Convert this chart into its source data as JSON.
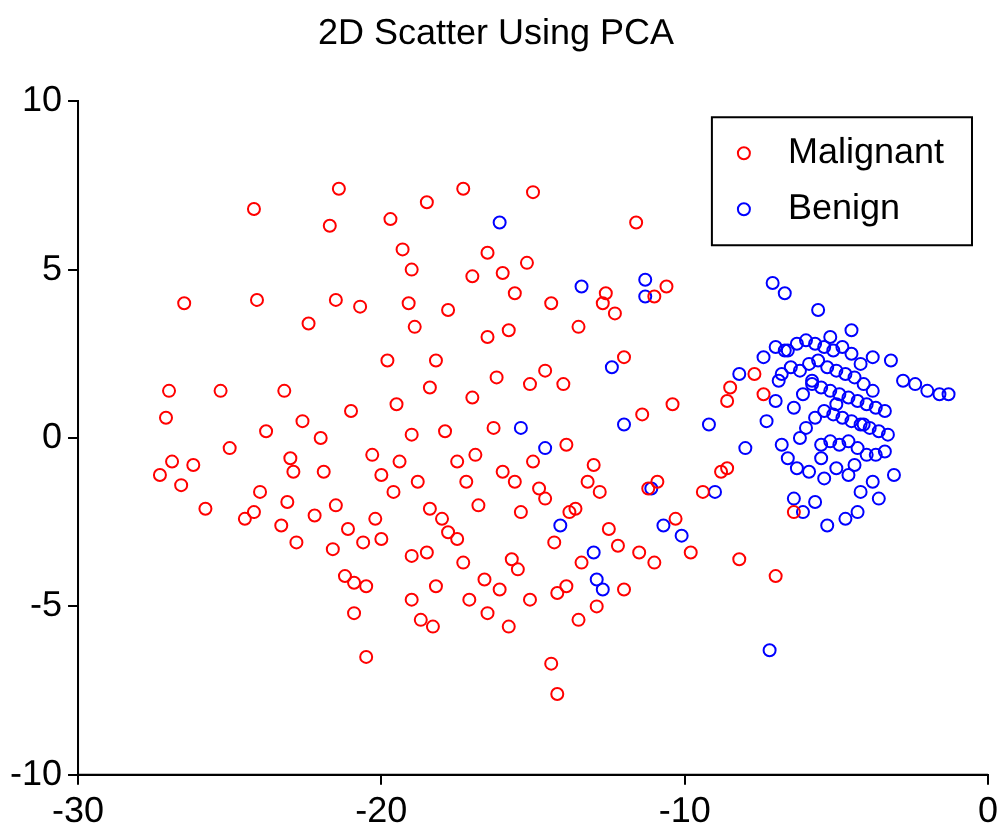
{
  "chart_data": {
    "type": "scatter",
    "title": "2D Scatter Using PCA",
    "xlim": [
      -30,
      0
    ],
    "ylim": [
      -10,
      10
    ],
    "xticks": [
      -30,
      -20,
      -10,
      0
    ],
    "yticks": [
      -10,
      -5,
      0,
      5,
      10
    ],
    "legend": "top right",
    "marker": "circle",
    "grid": false,
    "series": [
      {
        "name": "Malignant",
        "color": "#ff0000",
        "x": [
          -26.5,
          -27.0,
          -27.1,
          -26.9,
          -27.3,
          -26.6,
          -26.2,
          -25.8,
          -25.3,
          -24.2,
          -24.1,
          -24.5,
          -24.2,
          -24.0,
          -23.3,
          -23.1,
          -23.0,
          -22.8,
          -22.6,
          -22.9,
          -23.2,
          -21.4,
          -21.5,
          -22.0,
          -21.9,
          -21.5,
          -22.2,
          -21.6,
          -21.2,
          -20.9,
          -20.5,
          -21.0,
          -20.3,
          -20.0,
          -19.6,
          -19.8,
          -19.5,
          -19.3,
          -19.0,
          -19.1,
          -18.9,
          -19.7,
          -18.5,
          -18.8,
          -18.5,
          -18.2,
          -19.0,
          -18.7,
          -18.3,
          -20.5,
          -20.9,
          -17.5,
          -17.2,
          -17.0,
          -16.8,
          -16.5,
          -16.0,
          -15.8,
          -16.5,
          -17.0,
          -17.3,
          -15.0,
          -15.2,
          -14.8,
          -15.4,
          -15.7,
          -15.5,
          -16.1,
          -16.5,
          -17.1,
          -17.3,
          -17.8,
          -18.0,
          -18.4,
          -17.9,
          -18.4,
          -19.0,
          -19.4,
          -20.2,
          -20.6,
          -21.1,
          -20.0,
          -19.0,
          -17.5,
          -16.9,
          -16.3,
          -16.0,
          -15.6,
          -15.0,
          -14.6,
          -14.3,
          -13.8,
          -13.6,
          -13.2,
          -13.0,
          -12.8,
          -12.5,
          -13.4,
          -14.2,
          -13.5,
          -14.4,
          -14.2,
          -15.8,
          -16.6,
          -15.1,
          -13.9,
          -12.2,
          -12.0,
          -11.5,
          -11.0,
          -11.2,
          -11.4,
          -12.0,
          -12.3,
          -12.7,
          -13.5,
          -14.0,
          -14.6,
          -15.1,
          -14.4,
          -15.6,
          -16.2,
          -17.8,
          -18.2,
          -20.7,
          -21.7,
          -22.4,
          -23.8,
          -25.0,
          -11.0,
          -10.6,
          -10.9,
          -10.4,
          -10.3,
          -9.8,
          -9.4,
          -8.5,
          -8.2,
          -8.6,
          -8.8,
          -7.7,
          -7.4,
          -8.6,
          -12.9,
          -11.6,
          -12.6,
          -13.9,
          -6.4,
          -7.0
        ],
        "values": [
          4.0,
          1.4,
          0.6,
          -0.7,
          -1.1,
          -1.4,
          -0.8,
          -2.1,
          1.4,
          6.8,
          4.1,
          -2.4,
          -2.2,
          -1.6,
          -2.6,
          -1.9,
          -0.6,
          -3.1,
          0.5,
          -1.0,
          1.4,
          7.4,
          4.1,
          0.0,
          -1.0,
          -2.0,
          -2.3,
          -3.3,
          -4.1,
          -4.3,
          -4.4,
          0.8,
          -0.5,
          -1.1,
          -1.6,
          2.3,
          1.0,
          5.6,
          5.0,
          4.0,
          3.3,
          6.5,
          7.0,
          -1.3,
          -3.4,
          -4.4,
          -4.8,
          -5.4,
          -5.6,
          -6.5,
          -5.2,
          -0.7,
          -1.3,
          1.2,
          -2.0,
          5.5,
          4.9,
          3.2,
          3.0,
          4.8,
          7.4,
          7.3,
          5.2,
          -1.5,
          -2.2,
          -3.6,
          -3.9,
          -4.5,
          -5.2,
          -4.8,
          -3.7,
          -2.8,
          -2.4,
          -2.1,
          0.2,
          1.5,
          0.1,
          -0.7,
          -2.4,
          -3.1,
          -2.7,
          -3.0,
          -3.5,
          -3.0,
          -0.5,
          0.3,
          -1.0,
          -1.3,
          -0.7,
          -1.8,
          -3.1,
          -2.2,
          -2.1,
          -1.3,
          -0.8,
          -1.6,
          -2.7,
          -3.7,
          -4.6,
          -5.4,
          -6.7,
          -7.6,
          -5.6,
          -4.2,
          -4.8,
          -4.4,
          -3.2,
          -4.5,
          -3.4,
          -3.7,
          -1.5,
          0.7,
          2.4,
          3.7,
          4.0,
          3.3,
          1.6,
          2.0,
          1.6,
          4.0,
          4.3,
          1.8,
          3.8,
          2.3,
          3.9,
          6.3,
          3.4,
          0.2,
          -0.3,
          4.2,
          4.5,
          -1.3,
          1.0,
          -2.4,
          -3.4,
          -1.6,
          1.5,
          -3.6,
          -0.9,
          -1.0,
          1.9,
          1.3,
          1.1,
          -5.0,
          6.4,
          4.3,
          -0.2,
          -2.2,
          -4.1
        ]
      },
      {
        "name": "Benign",
        "color": "#0000ff",
        "x": [
          -16.1,
          -13.4,
          -11.3,
          -11.3,
          -14.6,
          -14.1,
          -13.0,
          -12.7,
          -12.9,
          -15.4,
          -12.4,
          -12.0,
          -11.1,
          -10.7,
          -10.1,
          -9.0,
          -9.2,
          -8.2,
          -7.2,
          -8.0,
          -6.9,
          -7.1,
          -6.7,
          -5.6,
          -7.4,
          -7.0,
          -6.6,
          -6.3,
          -6.0,
          -5.7,
          -5.4,
          -5.1,
          -4.8,
          -4.5,
          -4.2,
          -6.8,
          -6.5,
          -6.2,
          -5.9,
          -5.6,
          -5.3,
          -5.0,
          -4.7,
          -4.4,
          -4.1,
          -3.8,
          -6.4,
          -6.1,
          -5.8,
          -5.5,
          -5.2,
          -4.9,
          -4.6,
          -4.3,
          -4.0,
          -3.7,
          -3.4,
          -6.0,
          -5.7,
          -5.4,
          -5.1,
          -4.8,
          -4.5,
          -4.2,
          -3.9,
          -3.6,
          -3.3,
          -5.5,
          -5.2,
          -4.9,
          -4.6,
          -4.3,
          -4.0,
          -3.7,
          -3.4,
          -6.6,
          -6.3,
          -5.9,
          -5.4,
          -5.0,
          -4.6,
          -4.2,
          -3.8,
          -7.0,
          -6.8,
          -6.4,
          -6.1,
          -5.7,
          -5.3,
          -4.7,
          -4.3,
          -3.6,
          -3.1,
          -2.8,
          -2.4,
          -2.0,
          -1.6,
          -1.3,
          -3.2,
          -3.8,
          -4.5,
          -5.2,
          -6.7,
          -7.3,
          -5.8,
          -5.0,
          -4.1,
          -4.4,
          -6.2,
          -5.5
        ],
        "values": [
          6.4,
          4.5,
          4.7,
          4.2,
          -0.3,
          -2.6,
          -3.4,
          -4.5,
          -4.2,
          0.3,
          2.1,
          0.4,
          -1.5,
          -2.6,
          -2.9,
          -1.6,
          0.4,
          1.9,
          -6.3,
          -0.3,
          1.7,
          4.6,
          4.3,
          3.8,
          2.4,
          2.7,
          2.6,
          2.8,
          2.9,
          2.8,
          2.7,
          2.6,
          2.7,
          2.5,
          2.2,
          1.9,
          2.1,
          2.0,
          2.2,
          2.3,
          2.1,
          2.0,
          1.9,
          1.8,
          1.6,
          1.4,
          0.9,
          1.3,
          1.6,
          1.5,
          1.4,
          1.3,
          1.2,
          1.1,
          1.0,
          0.9,
          0.8,
          0.3,
          0.6,
          0.8,
          0.7,
          0.6,
          0.5,
          0.4,
          0.3,
          0.2,
          0.1,
          -0.2,
          -0.1,
          -0.2,
          -0.1,
          -0.3,
          -0.5,
          -0.5,
          -0.4,
          -0.6,
          -0.9,
          -1.0,
          -1.2,
          -0.9,
          -1.1,
          -1.6,
          -1.3,
          1.1,
          -0.2,
          -1.8,
          -2.2,
          -1.9,
          -2.6,
          -2.4,
          -2.2,
          -1.8,
          -1.1,
          1.7,
          1.6,
          1.4,
          1.3,
          1.3,
          2.3,
          2.4,
          3.2,
          3.0,
          2.6,
          0.5,
          1.7,
          1.0,
          0.4,
          -0.8,
          0.0,
          -0.6
        ]
      }
    ]
  }
}
